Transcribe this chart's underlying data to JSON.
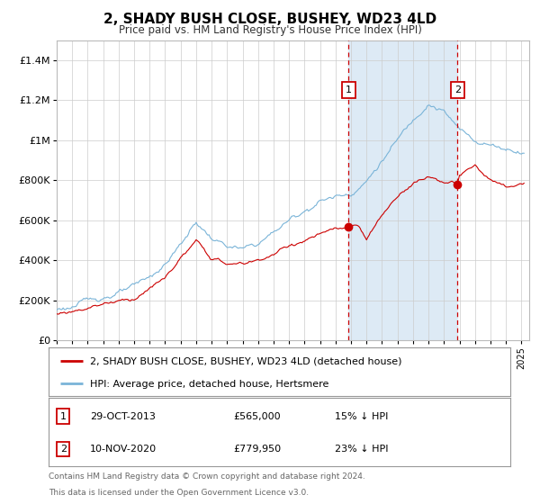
{
  "title": "2, SHADY BUSH CLOSE, BUSHEY, WD23 4LD",
  "subtitle": "Price paid vs. HM Land Registry's House Price Index (HPI)",
  "legend_line1": "2, SHADY BUSH CLOSE, BUSHEY, WD23 4LD (detached house)",
  "legend_line2": "HPI: Average price, detached house, Hertsmere",
  "annotation1_label": "1",
  "annotation1_date": "29-OCT-2013",
  "annotation1_price": 565000,
  "annotation1_pct": "15% ↓ HPI",
  "annotation2_label": "2",
  "annotation2_date": "10-NOV-2020",
  "annotation2_price": 779950,
  "annotation2_pct": "23% ↓ HPI",
  "footer_line1": "Contains HM Land Registry data © Crown copyright and database right 2024.",
  "footer_line2": "This data is licensed under the Open Government Licence v3.0.",
  "hpi_color": "#7ab4d8",
  "price_color": "#cc0000",
  "vline_color": "#cc0000",
  "shaded_region_color": "#ddeaf5",
  "grid_color": "#cccccc",
  "background_color": "#ffffff",
  "ylim": [
    0,
    1500000
  ],
  "yticks": [
    0,
    200000,
    400000,
    600000,
    800000,
    1000000,
    1200000,
    1400000
  ],
  "ytick_labels": [
    "£0",
    "£200K",
    "£400K",
    "£600K",
    "£800K",
    "£1M",
    "£1.2M",
    "£1.4M"
  ],
  "sale1_year": 2013.83,
  "sale2_year": 2020.87,
  "sale1_price": 565000,
  "sale2_price": 779950,
  "hpi_anchors_t": [
    0,
    1,
    2,
    3,
    4,
    5,
    6,
    7,
    8,
    9,
    10,
    11,
    12,
    13,
    14,
    15,
    16,
    17,
    18,
    19,
    20,
    21,
    22,
    23,
    24,
    25,
    26,
    27,
    28,
    29,
    30
  ],
  "hpi_anchors_v": [
    155000,
    170000,
    195000,
    220000,
    240000,
    260000,
    310000,
    380000,
    480000,
    590000,
    510000,
    470000,
    450000,
    480000,
    540000,
    600000,
    650000,
    700000,
    720000,
    740000,
    800000,
    900000,
    1000000,
    1100000,
    1200000,
    1150000,
    1050000,
    1000000,
    980000,
    960000,
    950000
  ],
  "prop_anchors_t": [
    0,
    1,
    2,
    3,
    4,
    5,
    6,
    7,
    8,
    9,
    10,
    11,
    12,
    13,
    14,
    15,
    16,
    17,
    18,
    19,
    19.5,
    20,
    21,
    22,
    23,
    24,
    25,
    25.87,
    26,
    27,
    28,
    29,
    30
  ],
  "prop_anchors_v": [
    130000,
    145000,
    165000,
    185000,
    200000,
    210000,
    260000,
    310000,
    410000,
    490000,
    410000,
    380000,
    380000,
    400000,
    430000,
    470000,
    500000,
    530000,
    550000,
    560000,
    565000,
    500000,
    620000,
    720000,
    790000,
    820000,
    795000,
    779950,
    820000,
    870000,
    800000,
    760000,
    780000
  ]
}
